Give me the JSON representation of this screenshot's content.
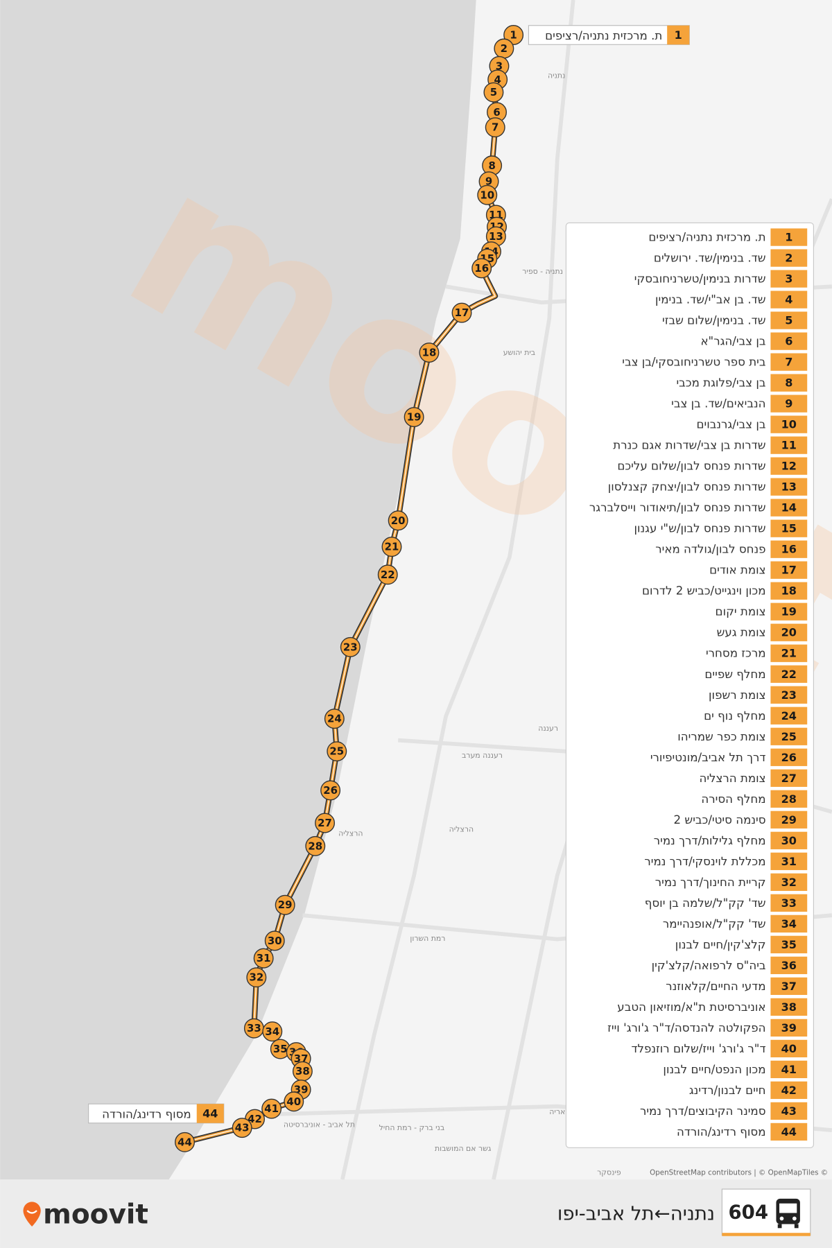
{
  "route": {
    "number": "604",
    "name": "נתניה←תל אביב-יפו"
  },
  "brand": "moovit",
  "attribution": "OpenStreetMap contributors | © OpenMapTiles ©",
  "map_labels": [
    "נתניה",
    "נתניה - ספיר",
    "בית יהושע",
    "רעננה",
    "רעננה מערב",
    "הרצליה",
    "הרצליה",
    "רמת השרון",
    "תל אביב - אוניברסיטה",
    "בני ברק - רמת החיל",
    "גשר אם המושבות",
    "תחנה רכבת קלה - קריית אריה",
    "פינסקר"
  ],
  "stops": [
    {
      "number": 1,
      "name": "ת. מרכזית נתניה/רציפים"
    },
    {
      "number": 2,
      "name": "שד. בנימין/שד. ירושלים"
    },
    {
      "number": 3,
      "name": "שדרות בנימין/טשרניחובסקי"
    },
    {
      "number": 4,
      "name": "שד. בן אב\"י/שד. בנימין"
    },
    {
      "number": 5,
      "name": "שד. בנימין/שלום שבזי"
    },
    {
      "number": 6,
      "name": "בן צבי/הגר\"א"
    },
    {
      "number": 7,
      "name": "בית ספר טשרניחובסקי/בן צבי"
    },
    {
      "number": 8,
      "name": "בן צבי/פלוגת מכבי"
    },
    {
      "number": 9,
      "name": "הנביאים/שד. בן צבי"
    },
    {
      "number": 10,
      "name": "בן צבי/גרנבוים"
    },
    {
      "number": 11,
      "name": "שדרות בן צבי/שדרות אגם כנרת"
    },
    {
      "number": 12,
      "name": "שדרות פנחס לבון/שלום עליכם"
    },
    {
      "number": 13,
      "name": "שדרות פנחס לבון/יצחק קצנלסון"
    },
    {
      "number": 14,
      "name": "שדרות פנחס לבון/תיאודור וייסלברגר"
    },
    {
      "number": 15,
      "name": "שדרות פנחס לבון/ש\"י עגנון"
    },
    {
      "number": 16,
      "name": "פנחס לבון/גולדה מאיר"
    },
    {
      "number": 17,
      "name": "צומת אודים"
    },
    {
      "number": 18,
      "name": "מכון וינגייט/כביש 2 לדרום"
    },
    {
      "number": 19,
      "name": "צומת יקום"
    },
    {
      "number": 20,
      "name": "צומת געש"
    },
    {
      "number": 21,
      "name": "מרכז מסחרי"
    },
    {
      "number": 22,
      "name": "מחלף שפיים"
    },
    {
      "number": 23,
      "name": "צומת רשפון"
    },
    {
      "number": 24,
      "name": "מחלף נוף ים"
    },
    {
      "number": 25,
      "name": "צומת כפר שמריהו"
    },
    {
      "number": 26,
      "name": "דרך תל אביב/מונטיפיורי"
    },
    {
      "number": 27,
      "name": "צומת הרצליה"
    },
    {
      "number": 28,
      "name": "מחלף הסירה"
    },
    {
      "number": 29,
      "name": "סינמה סיטי/כביש 2"
    },
    {
      "number": 30,
      "name": "מחלף גלילות/דרך נמיר"
    },
    {
      "number": 31,
      "name": "מכללת לוינסקי/דרך נמיר"
    },
    {
      "number": 32,
      "name": "קריית החינוך/דרך נמיר"
    },
    {
      "number": 33,
      "name": "שד' קק\"ל/שלמה בן יוסף"
    },
    {
      "number": 34,
      "name": "שד' קק\"ל/אופנהיימר"
    },
    {
      "number": 35,
      "name": "קלצ'קין/חיים לבנון"
    },
    {
      "number": 36,
      "name": "ביה\"ס לרפואה/קלצ'קין"
    },
    {
      "number": 37,
      "name": "מדעי החיים/קלאוזנר"
    },
    {
      "number": 38,
      "name": "אוניברסיטת ת\"א/מוזיאון הטבע"
    },
    {
      "number": 39,
      "name": "הפקולטה להנדסה/ד\"ר ג'ורג' וייז"
    },
    {
      "number": 40,
      "name": "ד\"ר ג'ורג' וייז/שלום רוזנפלד"
    },
    {
      "number": 41,
      "name": "מכון הנפט/חיים לבנון"
    },
    {
      "number": 42,
      "name": "חיים לבנון/רדינג"
    },
    {
      "number": 43,
      "name": "סמינר הקיבוצים/דרך נמיר"
    },
    {
      "number": 44,
      "name": "מסוף רדינג/הורדה"
    }
  ]
}
